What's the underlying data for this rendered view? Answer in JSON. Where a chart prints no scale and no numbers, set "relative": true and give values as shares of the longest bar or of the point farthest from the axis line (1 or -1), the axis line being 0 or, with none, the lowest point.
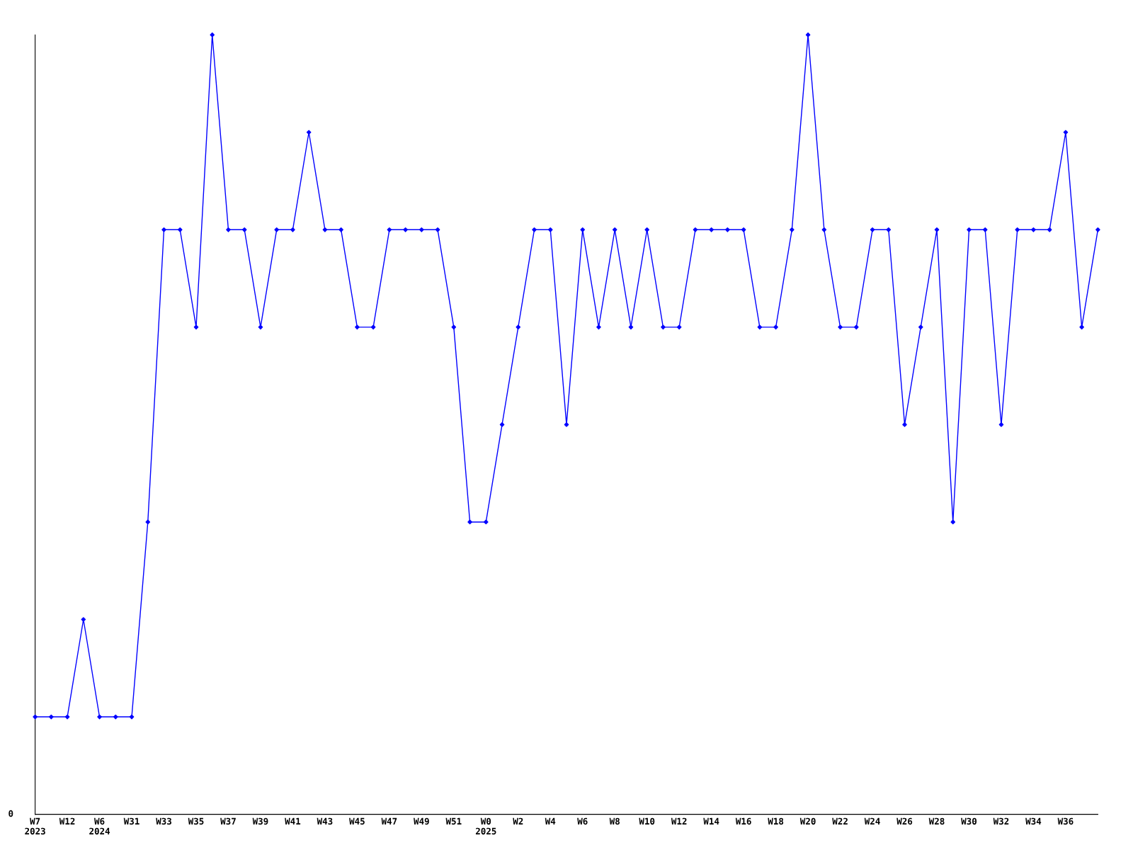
{
  "chart_data": {
    "type": "line",
    "relative": true,
    "color": "#0000ff",
    "marker": "diamond",
    "line_style": "solid",
    "grid": false,
    "legend": false,
    "annotations": [
      "0"
    ],
    "categories": [
      "W7\n2023",
      null,
      "W12",
      null,
      "W6\n2024",
      null,
      "W31",
      null,
      "W33",
      null,
      "W35",
      null,
      "W37",
      null,
      "W39",
      null,
      "W41",
      null,
      "W43",
      null,
      "W45",
      null,
      "W47",
      null,
      "W49",
      null,
      "W51",
      null,
      "W0\n2025",
      null,
      "W2",
      null,
      "W4",
      null,
      "W6",
      null,
      "W8",
      null,
      "W10",
      null,
      "W12",
      null,
      "W14",
      null,
      "W16",
      null,
      "W18",
      null,
      "W20",
      null,
      "W22",
      null,
      "W24",
      null,
      "W26",
      null,
      "W28",
      null,
      "W30",
      null,
      "W32",
      null,
      "W34",
      null,
      "W36",
      null,
      null
    ],
    "values": [
      0.125,
      0.125,
      0.125,
      0.25,
      0.125,
      0.125,
      0.125,
      0.375,
      0.75,
      0.75,
      0.625,
      1,
      0.75,
      0.75,
      0.625,
      0.75,
      0.75,
      0.875,
      0.75,
      0.75,
      0.625,
      0.625,
      0.75,
      0.75,
      0.75,
      0.75,
      0.625,
      0.375,
      0.375,
      0.5,
      0.625,
      0.75,
      0.75,
      0.5,
      0.75,
      0.625,
      0.75,
      0.625,
      0.75,
      0.625,
      0.625,
      0.75,
      0.75,
      0.75,
      0.75,
      0.625,
      0.625,
      0.75,
      1,
      0.75,
      0.625,
      0.625,
      0.75,
      0.75,
      0.5,
      0.625,
      0.75,
      0.375,
      0.75,
      0.75,
      0.5,
      0.75,
      0.75,
      0.75,
      0.875,
      0.625,
      0.75
    ]
  }
}
